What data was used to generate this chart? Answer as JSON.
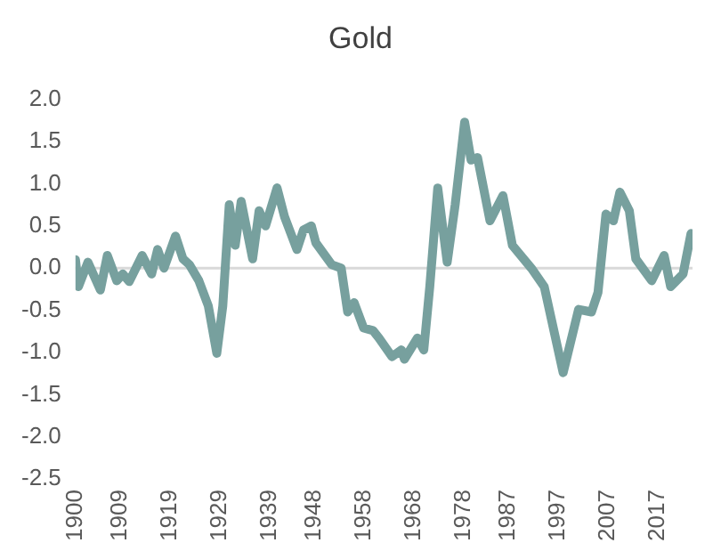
{
  "chart_data": {
    "type": "line",
    "title": "Gold",
    "x": [
      1900,
      1900.6,
      1902.5,
      1905,
      1906.4,
      1908.3,
      1909.5,
      1910.8,
      1913.4,
      1915.3,
      1916.5,
      1917.8,
      1920.1,
      1921.6,
      1922.9,
      1924.8,
      1926.7,
      1928.4,
      1929.6,
      1930.9,
      1932.1,
      1933.3,
      1935.6,
      1936.9,
      1938.2,
      1940.5,
      1942,
      1944.5,
      1945.8,
      1947.4,
      1948.3,
      1951.5,
      1953.4,
      1954.7,
      1956,
      1957.9,
      1959.8,
      1961,
      1963.6,
      1965.5,
      1966.1,
      1968.7,
      1970,
      1971.2,
      1972.8,
      1974.7,
      1976.3,
      1978.2,
      1979.5,
      1980.8,
      1983.3,
      1985.9,
      1987.8,
      1991.6,
      1994.2,
      1998,
      2001.1,
      2003.7,
      2005,
      2006.6,
      2008.1,
      2009.4,
      2011.3,
      2012.6,
      2015.8,
      2018.3,
      2019.6,
      2022.1,
      2023.7
    ],
    "series": [
      {
        "color": "#77a09e",
        "values": [
          0.1,
          -0.22,
          0.07,
          -0.26,
          0.15,
          -0.15,
          -0.07,
          -0.16,
          0.15,
          -0.07,
          0.22,
          0,
          0.38,
          0.11,
          0.04,
          -0.15,
          -0.45,
          -1.01,
          -0.45,
          0.75,
          0.27,
          0.79,
          0.11,
          0.68,
          0.5,
          0.95,
          0.61,
          0.22,
          0.45,
          0.5,
          0.3,
          0.04,
          0,
          -0.52,
          -0.41,
          -0.71,
          -0.74,
          -0.83,
          -1.05,
          -0.97,
          -1.08,
          -0.83,
          -0.97,
          -0.22,
          0.95,
          0.07,
          0.75,
          1.73,
          1.28,
          1.31,
          0.56,
          0.86,
          0.27,
          0,
          -0.22,
          -1.24,
          -0.49,
          -0.52,
          -0.29,
          0.64,
          0.56,
          0.9,
          0.68,
          0.11,
          -0.15,
          0.15,
          -0.22,
          -0.07,
          0.41
        ]
      }
    ],
    "xlim": [
      1900,
      2024
    ],
    "xticks": [
      1900,
      1909,
      1919,
      1929,
      1939,
      1948,
      1958,
      1968,
      1978,
      1987,
      1997,
      2007,
      2017
    ],
    "ylim": [
      -2.5,
      2
    ],
    "yticks": [
      -2.5,
      {
        "value": -2,
        "label": "-2.0"
      },
      -1.5,
      {
        "value": -1,
        "label": "-1.0"
      },
      -0.5,
      {
        "value": 0,
        "label": "0.0"
      },
      0.5,
      {
        "value": 1,
        "label": "1.0"
      },
      1.5,
      {
        "value": 2,
        "label": "2.0"
      }
    ],
    "ref_lines": [
      {
        "axis": "y",
        "value": 0,
        "color": "#d9d9d9"
      }
    ],
    "grid": false,
    "legend": false,
    "marker": "none",
    "line_style": "solid"
  }
}
